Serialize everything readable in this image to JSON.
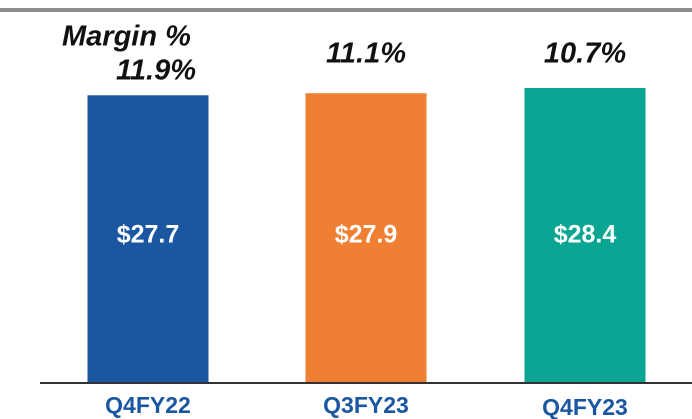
{
  "chart_data": {
    "type": "bar",
    "categories": [
      "Q4FY22",
      "Q3FY23",
      "Q4FY23"
    ],
    "values": [
      27.7,
      27.9,
      28.4
    ],
    "value_labels": [
      "$27.7",
      "$27.9",
      "$28.4"
    ],
    "colors": [
      "#1b57a1",
      "#ee7f33",
      "#0aa693"
    ],
    "margins": {
      "name": "Margin %",
      "values": [
        11.9,
        11.1,
        10.7
      ],
      "value_labels": [
        "11.9%",
        "11.1%",
        "10.7%"
      ]
    }
  }
}
